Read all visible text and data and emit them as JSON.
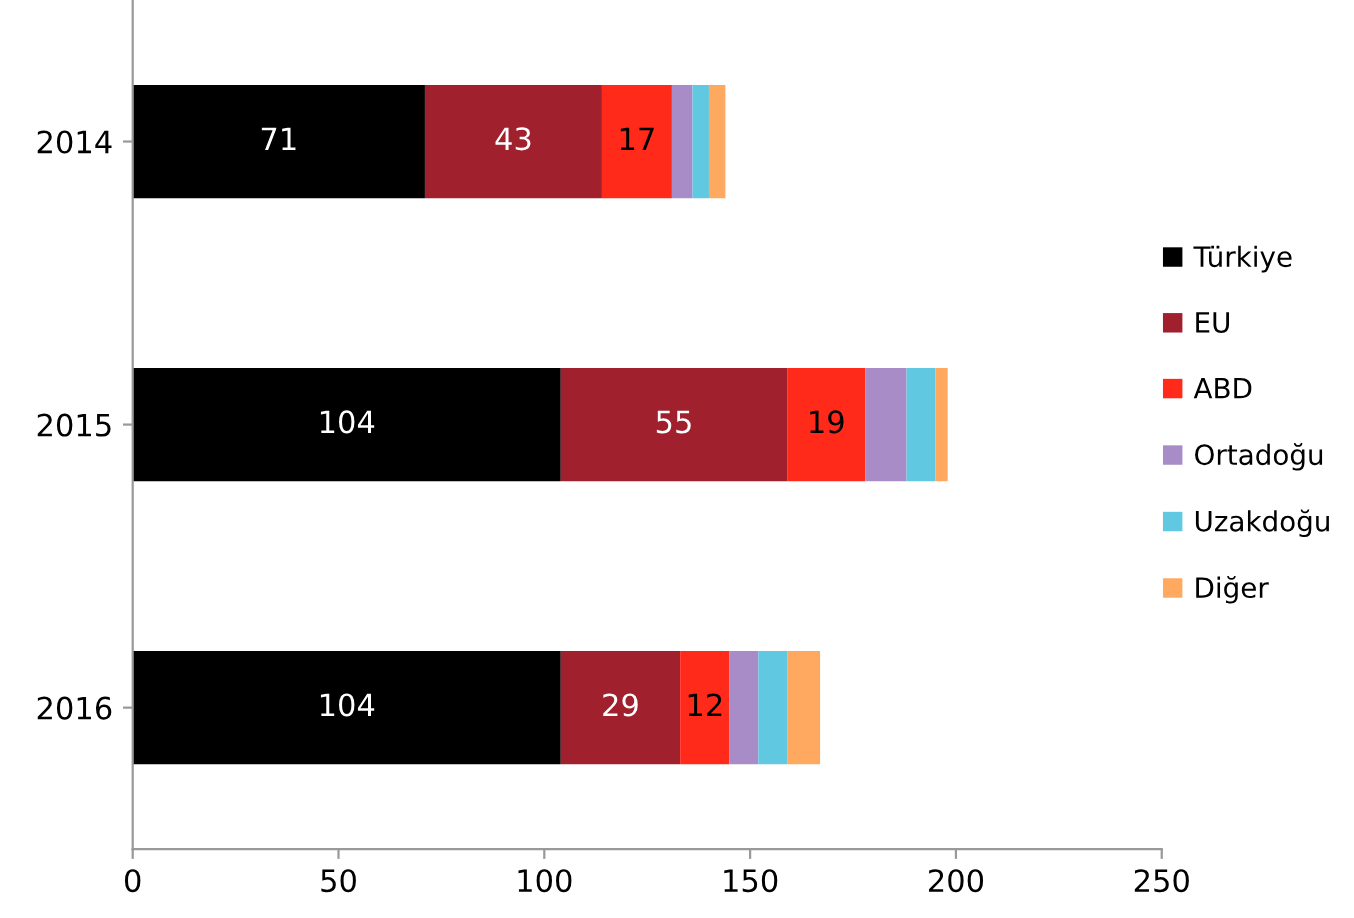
{
  "chart_data": {
    "type": "bar",
    "orientation": "horizontal",
    "stacked": true,
    "categories": [
      "2014",
      "2015",
      "2016"
    ],
    "series": [
      {
        "name": "Türkiye",
        "color": "#000000",
        "values": [
          71,
          104,
          104
        ],
        "value_labels": [
          "71",
          "104",
          "104"
        ]
      },
      {
        "name": "EU",
        "color": "#a0202e",
        "values": [
          43,
          55,
          29
        ],
        "value_labels": [
          "43",
          "55",
          "29"
        ]
      },
      {
        "name": "ABD",
        "color": "#ff2a1a",
        "values": [
          17,
          19,
          12
        ],
        "value_labels": [
          "17",
          "19",
          "12"
        ]
      },
      {
        "name": "Ortadoğu",
        "color": "#a88cc8",
        "values": [
          5,
          10,
          7
        ]
      },
      {
        "name": "Uzakdoğu",
        "color": "#60c8e0",
        "values": [
          4,
          7,
          7
        ]
      },
      {
        "name": "Diğer",
        "color": "#ffa860",
        "values": [
          4,
          3,
          8
        ]
      }
    ],
    "xlim": [
      0,
      250
    ],
    "xticks": [
      0,
      50,
      100,
      150,
      200,
      250
    ],
    "grid": false,
    "legend": "right"
  }
}
